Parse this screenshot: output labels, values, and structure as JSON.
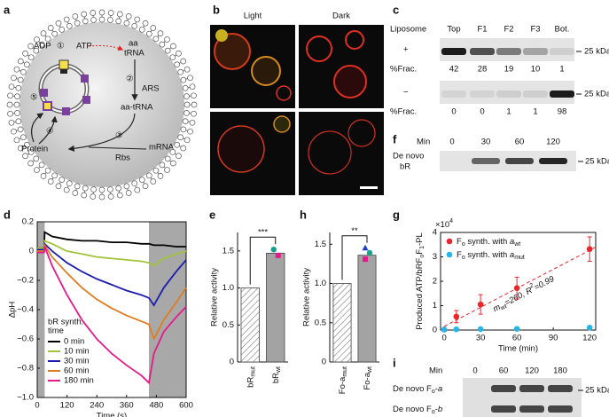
{
  "panel_labels": [
    "a",
    "b",
    "c",
    "d",
    "e",
    "f",
    "g",
    "h",
    "i"
  ],
  "a": {
    "adp": "ADP",
    "atp": "ATP",
    "aa": "aa",
    "trna": "tRNA",
    "ars": "ARS",
    "aa_trna": "aa-tRNA",
    "mrna": "mRNA",
    "rbs": "Rbs",
    "protein": "Protein",
    "steps": [
      "①",
      "②",
      "③",
      "④",
      "⑤"
    ]
  },
  "b": {
    "light": "Light",
    "dark": "Dark"
  },
  "c": {
    "header": [
      "Liposome",
      "Top",
      "F1",
      "F2",
      "F3",
      "Bot."
    ],
    "rows": [
      {
        "sign": "+",
        "label": "%Frac.",
        "values": [
          42,
          28,
          19,
          10,
          1
        ]
      },
      {
        "sign": "−",
        "label": "%Frac.",
        "values": [
          0,
          0,
          1,
          1,
          98
        ]
      }
    ],
    "marker": "25 kDa"
  },
  "f": {
    "min_label": "Min",
    "minutes": [
      0,
      30,
      60,
      120
    ],
    "label": [
      "De novo",
      "bR"
    ],
    "marker": "25 kDa"
  },
  "i": {
    "min_label": "Min",
    "minutes": [
      0,
      60,
      120,
      180
    ],
    "rows": [
      [
        "De novo F",
        {
          "t": "o",
          "style": "sub"
        },
        "-",
        {
          "t": "a",
          "style": "italic"
        }
      ],
      [
        "De novo F",
        {
          "t": "o",
          "style": "sub"
        },
        "-",
        {
          "t": "b",
          "style": "italic"
        }
      ]
    ],
    "marker": "25 kDa"
  },
  "chart_data": [
    {
      "type": "line",
      "xlabel": "Time (s)",
      "ylabel": "ΔpH",
      "x": [
        0,
        28,
        30,
        60,
        120,
        180,
        240,
        300,
        360,
        420,
        450,
        470,
        510,
        560,
        600
      ],
      "series": [
        {
          "name": "0 min",
          "color": "#000000",
          "values": [
            0.02,
            0.02,
            0.13,
            0.1,
            0.08,
            0.07,
            0.07,
            0.06,
            0.06,
            0.05,
            0.05,
            0.04,
            0.04,
            0.03,
            0.03
          ]
        },
        {
          "name": "10 min",
          "color": "#a3c43a",
          "values": [
            0.02,
            0.02,
            0.07,
            0.05,
            0.0,
            -0.02,
            -0.04,
            -0.05,
            -0.06,
            -0.07,
            -0.08,
            -0.1,
            -0.05,
            -0.02,
            0.0
          ]
        },
        {
          "name": "30 min",
          "color": "#1c1cb0",
          "values": [
            0.01,
            0.01,
            0.05,
            0.0,
            -0.08,
            -0.14,
            -0.19,
            -0.23,
            -0.27,
            -0.3,
            -0.32,
            -0.37,
            -0.25,
            -0.14,
            -0.06
          ]
        },
        {
          "name": "60 min",
          "color": "#e07b1f",
          "values": [
            0,
            0,
            0.04,
            -0.04,
            -0.15,
            -0.25,
            -0.33,
            -0.39,
            -0.44,
            -0.48,
            -0.5,
            -0.6,
            -0.47,
            -0.35,
            -0.25
          ]
        },
        {
          "name": "180 min",
          "color": "#e6198a",
          "values": [
            -0.01,
            -0.01,
            0.03,
            -0.1,
            -0.3,
            -0.47,
            -0.6,
            -0.7,
            -0.78,
            -0.85,
            -0.9,
            -0.7,
            -0.55,
            -0.45,
            -0.38
          ]
        }
      ],
      "xlim": [
        0,
        600
      ],
      "ylim": [
        -1,
        0.2
      ],
      "xticks": [
        0,
        120,
        240,
        360,
        480,
        600
      ],
      "yticks": [
        {
          "value": -1,
          "label": "−1.0"
        },
        {
          "value": -0.8,
          "label": "−0.8"
        },
        {
          "value": -0.6,
          "label": "−0.6"
        },
        {
          "value": -0.4,
          "label": "−0.4"
        },
        {
          "value": -0.2,
          "label": "−0.2"
        },
        0,
        0.2
      ],
      "legend_title": [
        "bR synth.",
        "time"
      ],
      "legend": "lower left",
      "shaded": [
        [
          0,
          30
        ],
        [
          450,
          600
        ]
      ]
    },
    {
      "type": "bar",
      "ylabel": "Relative activity",
      "categories": [
        [
          "bR",
          {
            "t": "mut",
            "style": "sub"
          }
        ],
        [
          "bR",
          {
            "t": "wt",
            "style": "sub"
          }
        ]
      ],
      "values": [
        1,
        1.47
      ],
      "colors": [
        "#ffffff",
        "#a3a3a3"
      ],
      "hatch": [
        true,
        false
      ],
      "replicates": [
        [],
        [
          1.52,
          1.44
        ]
      ],
      "replicate_colors": [
        "#17a08c",
        "#e6198a"
      ],
      "replicate_markers": [
        "circle",
        "square"
      ],
      "significance": "***",
      "ylim": [
        0,
        1.75
      ],
      "yticks": [
        0,
        0.5,
        {
          "value": 1,
          "label": "1.0"
        },
        1.5
      ]
    },
    {
      "type": "bar",
      "ylabel": "Relative activity",
      "categories": [
        [
          "Fo-a",
          {
            "t": "mut",
            "style": "sub"
          }
        ],
        [
          "Fo-a",
          {
            "t": "wt",
            "style": "sub"
          }
        ]
      ],
      "values": [
        1,
        1.36
      ],
      "colors": [
        "#ffffff",
        "#a3a3a3"
      ],
      "hatch": [
        true,
        false
      ],
      "replicates": [
        [],
        [
          1.45,
          1.39,
          1.31
        ]
      ],
      "replicate_colors": [
        "#1c3cc8",
        "#17a08c",
        "#e6198a"
      ],
      "replicate_markers": [
        "triangle",
        "circle",
        "square"
      ],
      "significance": "**",
      "ylim": [
        0,
        1.65
      ],
      "yticks": [
        0,
        0.5,
        {
          "value": 1,
          "label": "1.0"
        },
        1.5
      ]
    },
    {
      "type": "scatter",
      "ylabel": [
        "Produced ATP/bRF",
        {
          "t": "o",
          "style": "sub"
        },
        "F",
        {
          "t": "1",
          "style": "sub"
        },
        "-PL"
      ],
      "y_multiplier": [
        "×10",
        {
          "t": "4",
          "style": "sup"
        }
      ],
      "xlabel": "Time (min)",
      "x": [
        0,
        10,
        30,
        60,
        120
      ],
      "series": [
        {
          "name": [
            "F",
            {
              "t": "o",
              "style": "sub"
            },
            " synth. with ",
            {
              "t": "a",
              "style": "italic"
            },
            {
              "t": "wt",
              "style": "sub"
            }
          ],
          "color": "#e8262b",
          "values": [
            0.02,
            0.55,
            1.05,
            1.72,
            3.32
          ],
          "errors": [
            0.05,
            0.25,
            0.4,
            0.45,
            0.5
          ]
        },
        {
          "name": [
            "F",
            {
              "t": "o",
              "style": "sub"
            },
            " synth. with ",
            {
              "t": "a",
              "style": "italic"
            },
            {
              "t": "mut",
              "style": "sub"
            }
          ],
          "color": "#27b5e6",
          "values": [
            0.02,
            0.03,
            0.04,
            0.05,
            0.1
          ]
        }
      ],
      "fit_line": {
        "x": [
          0,
          125
        ],
        "y": [
          0.15,
          3.4
        ]
      },
      "fit_label": [
        {
          "t": "m",
          "style": "italic"
        },
        {
          "t": "wt",
          "style": "sub"
        },
        "=260, ",
        {
          "t": "R",
          "style": "italic"
        },
        {
          "t": "2",
          "style": "sup"
        },
        "=0.99"
      ],
      "xlim": [
        -3,
        125
      ],
      "ylim": [
        0,
        4
      ],
      "xticks": [
        0,
        30,
        60,
        90,
        120
      ],
      "yticks": [
        0,
        1,
        2,
        3,
        4
      ],
      "legend": "upper left"
    }
  ]
}
